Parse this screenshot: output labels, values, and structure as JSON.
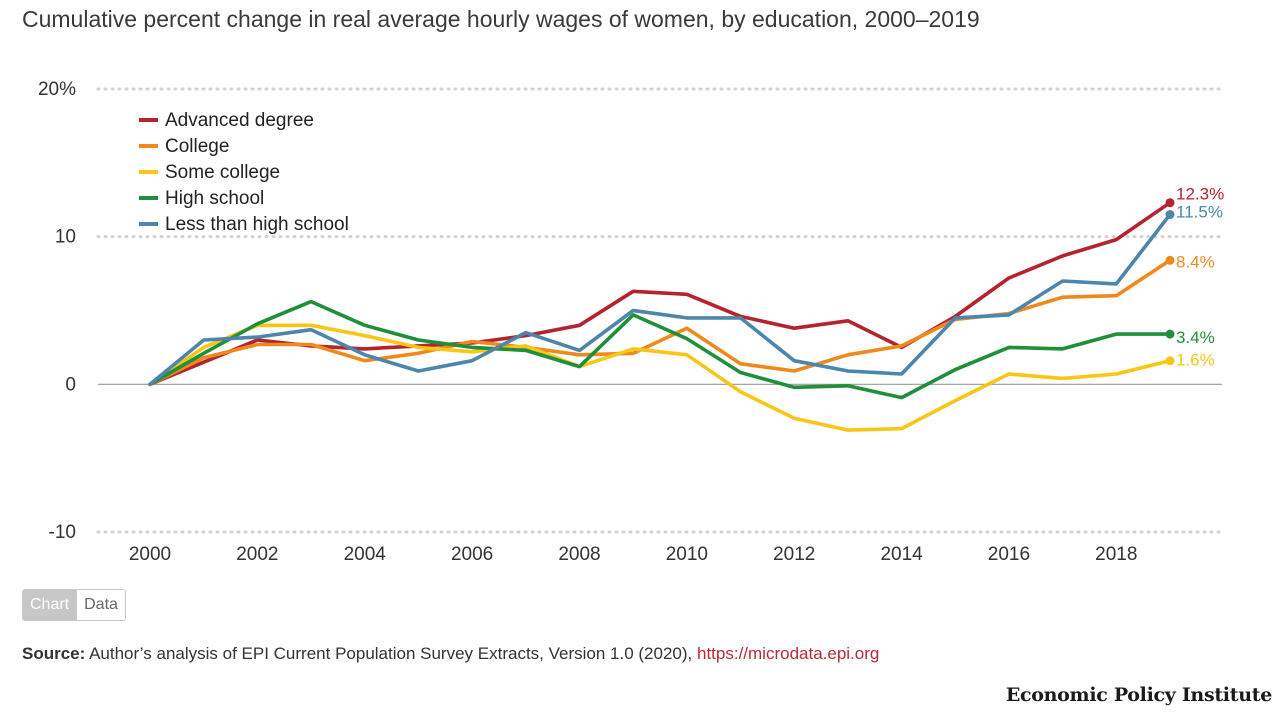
{
  "title": "Cumulative percent change in real average hourly wages of women, by education, 2000–2019",
  "toggle": {
    "chart_label": "Chart",
    "data_label": "Data"
  },
  "source": {
    "label": "Source:",
    "text": " Author’s analysis of EPI Current Population Survey Extracts, Version 1.0 (2020), ",
    "link": "https://microdata.epi.org"
  },
  "brand": "Economic Policy Institute",
  "colors": {
    "accent_link": "#b52a36"
  },
  "chart_data": {
    "type": "line",
    "title": "Cumulative percent change in real average hourly wages of women, by education, 2000–2019",
    "xlabel": "",
    "ylabel": "",
    "x": [
      2000,
      2001,
      2002,
      2003,
      2004,
      2005,
      2006,
      2007,
      2008,
      2009,
      2010,
      2011,
      2012,
      2013,
      2014,
      2015,
      2016,
      2017,
      2018,
      2019
    ],
    "xlim": [
      2000,
      2019
    ],
    "ylim": [
      -10,
      20
    ],
    "x_ticks": [
      2000,
      2002,
      2004,
      2006,
      2008,
      2010,
      2012,
      2014,
      2016,
      2018
    ],
    "x_tick_labels": [
      "2000",
      "2002",
      "2004",
      "2006",
      "2008",
      "2010",
      "2012",
      "2014",
      "2016",
      "2018"
    ],
    "y_ticks": [
      -10,
      0,
      10,
      20
    ],
    "y_tick_labels": [
      "-10",
      "0",
      "10",
      "20%"
    ],
    "grid": "horizontal dotted",
    "legend_position": "top-left",
    "series": [
      {
        "name": "Advanced degree",
        "color": "#b5232f",
        "end_label": "12.3%",
        "values": [
          0,
          1.5,
          3.0,
          2.6,
          2.4,
          2.6,
          2.8,
          3.3,
          4.0,
          6.3,
          6.1,
          4.6,
          3.8,
          4.3,
          2.5,
          4.6,
          7.2,
          8.7,
          9.8,
          12.3
        ]
      },
      {
        "name": "College",
        "color": "#f0891d",
        "end_label": "8.4%",
        "values": [
          0,
          1.8,
          2.7,
          2.7,
          1.6,
          2.1,
          2.9,
          2.5,
          2.0,
          2.1,
          3.8,
          1.4,
          0.9,
          2.0,
          2.6,
          4.4,
          4.8,
          5.9,
          6.0,
          8.4
        ]
      },
      {
        "name": "Some college",
        "color": "#f8c617",
        "end_label": "1.6%",
        "values": [
          0,
          2.5,
          4.0,
          4.0,
          3.3,
          2.5,
          2.2,
          2.6,
          1.2,
          2.4,
          2.0,
          -0.5,
          -2.3,
          -3.1,
          -3.0,
          -1.1,
          0.7,
          0.4,
          0.7,
          1.6
        ]
      },
      {
        "name": "High school",
        "color": "#1f8f3a",
        "end_label": "3.4%",
        "values": [
          0,
          2.1,
          4.1,
          5.6,
          4.0,
          3.0,
          2.5,
          2.3,
          1.2,
          4.7,
          3.1,
          0.8,
          -0.2,
          -0.1,
          -0.9,
          1.0,
          2.5,
          2.4,
          3.4,
          3.4
        ]
      },
      {
        "name": "Less than high school",
        "color": "#4d86ab",
        "end_label": "11.5%",
        "values": [
          0,
          3.0,
          3.2,
          3.7,
          2.0,
          0.9,
          1.6,
          3.5,
          2.3,
          5.0,
          4.5,
          4.5,
          1.6,
          0.9,
          0.7,
          4.5,
          4.7,
          7.0,
          6.8,
          11.5
        ]
      }
    ]
  }
}
